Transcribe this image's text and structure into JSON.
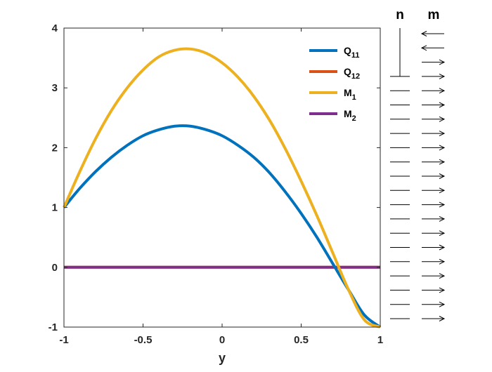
{
  "chart_data": [
    {
      "type": "line",
      "title": "",
      "xlabel": "y",
      "ylabel": "",
      "xlim": [
        -1,
        1
      ],
      "ylim": [
        -1,
        4
      ],
      "x_ticks": [
        "-1",
        "-0.5",
        "0",
        "0.5",
        "1"
      ],
      "y_ticks": [
        "-1",
        "0",
        "1",
        "2",
        "3",
        "4"
      ],
      "grid": false,
      "legend_position": "top-right",
      "x": [
        -1,
        -0.9,
        -0.8,
        -0.7,
        -0.6,
        -0.5,
        -0.4,
        -0.3,
        -0.2,
        -0.1,
        0,
        0.1,
        0.2,
        0.3,
        0.4,
        0.5,
        0.6,
        0.7,
        0.8,
        0.9,
        1
      ],
      "series": [
        {
          "name_main": "Q",
          "name_sub": "11",
          "color": "#0072BD",
          "values": [
            1.0,
            1.32,
            1.6,
            1.84,
            2.04,
            2.2,
            2.3,
            2.36,
            2.36,
            2.3,
            2.2,
            2.04,
            1.84,
            1.58,
            1.26,
            0.9,
            0.5,
            0.06,
            -0.38,
            -0.8,
            -1.0
          ]
        },
        {
          "name_main": "Q",
          "name_sub": "12",
          "color": "#D95319",
          "values": [
            0,
            0,
            0,
            0,
            0,
            0,
            0,
            0,
            0,
            0,
            0,
            0,
            0,
            0,
            0,
            0,
            0,
            0,
            0,
            0,
            0
          ]
        },
        {
          "name_main": "M",
          "name_sub": "1",
          "color": "#EDB120",
          "values": [
            1.0,
            1.6,
            2.15,
            2.62,
            3.0,
            3.3,
            3.52,
            3.63,
            3.65,
            3.58,
            3.42,
            3.18,
            2.86,
            2.46,
            1.98,
            1.44,
            0.86,
            0.24,
            -0.38,
            -0.88,
            -1.0
          ]
        },
        {
          "name_main": "M",
          "name_sub": "2",
          "color": "#7E2F8E",
          "values": [
            0,
            0,
            0,
            0,
            0,
            0,
            0,
            0,
            0,
            0,
            0,
            0,
            0,
            0,
            0,
            0,
            0,
            0,
            0,
            0,
            0
          ]
        }
      ]
    },
    {
      "type": "vector-field",
      "columns": [
        "n",
        "m"
      ],
      "n_stick_rows": 4,
      "n_rest": "dash",
      "m_directions": [
        "left",
        "left",
        "right",
        "right",
        "right",
        "right",
        "right",
        "right",
        "right",
        "right",
        "right",
        "right",
        "right",
        "right",
        "right",
        "right",
        "right",
        "right",
        "right",
        "right",
        "right"
      ]
    }
  ]
}
